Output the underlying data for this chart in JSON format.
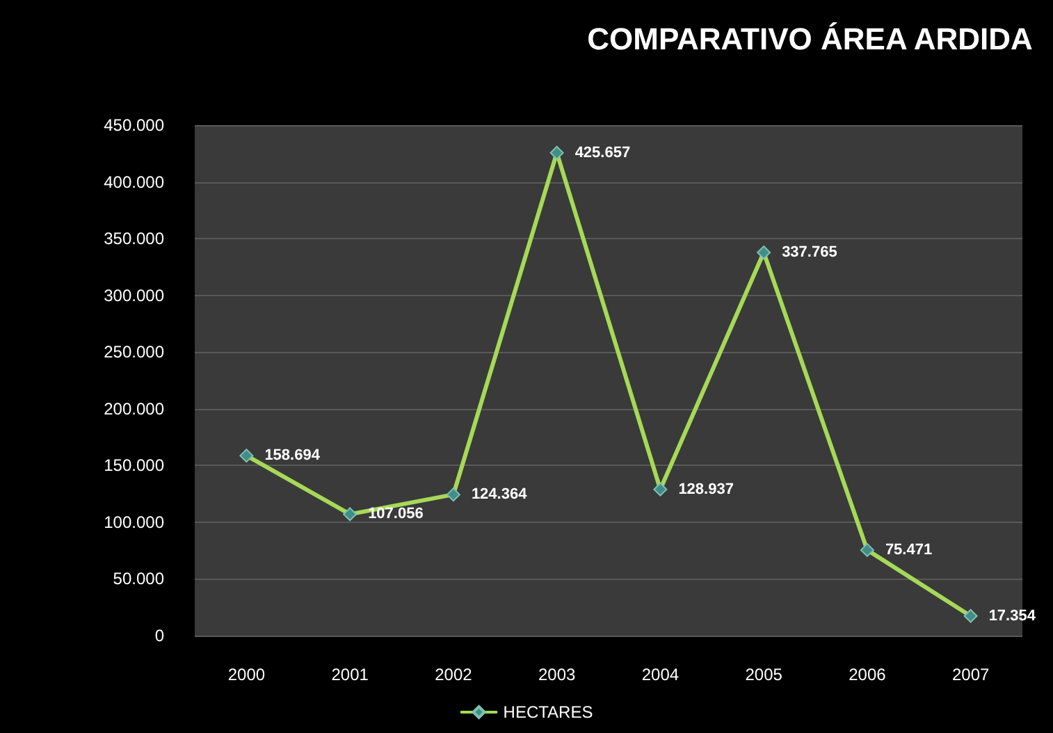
{
  "chart_data": {
    "type": "line",
    "title": "COMPARATIVO ÁREA ARDIDA",
    "categories": [
      "2000",
      "2001",
      "2002",
      "2003",
      "2004",
      "2005",
      "2006",
      "2007"
    ],
    "series": [
      {
        "name": "HECTARES",
        "color": "#a6d957",
        "values": [
          158694,
          107056,
          124364,
          425657,
          128937,
          337765,
          75471,
          17354
        ],
        "value_labels": [
          "158.694",
          "107.056",
          "124.364",
          "425.657",
          "128.937",
          "337.765",
          "75.471",
          "17.354"
        ]
      }
    ],
    "ylim": [
      0,
      450000
    ],
    "yticks": [
      0,
      {
        "value": 50000,
        "label": "50.000"
      },
      {
        "value": 100000,
        "label": "100.000"
      },
      {
        "value": 150000,
        "label": "150.000"
      },
      {
        "value": 200000,
        "label": "200.000"
      },
      {
        "value": 250000,
        "label": "250.000"
      },
      {
        "value": 300000,
        "label": "300.000"
      },
      {
        "value": 350000,
        "label": "350.000"
      },
      {
        "value": 400000,
        "label": "400.000"
      },
      {
        "value": 450000,
        "label": "450.000"
      }
    ],
    "grid": "y",
    "legend": "bottom",
    "marker": "diamond",
    "line_style": "solid"
  }
}
